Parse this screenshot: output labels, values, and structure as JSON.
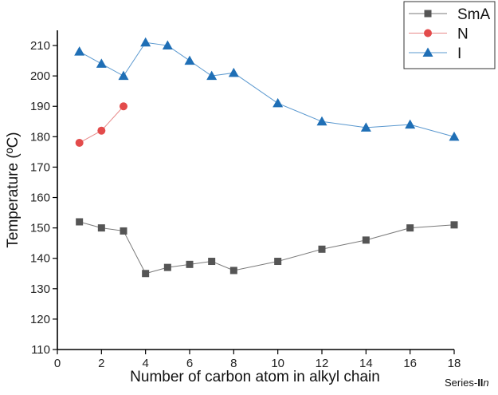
{
  "chart_data": {
    "type": "line",
    "xlabel": "Number of carbon atom in alkyl chain",
    "ylabel": "Temperature (ºC)",
    "xlim": [
      0,
      18
    ],
    "ylim": [
      110,
      215
    ],
    "xticks": [
      0,
      2,
      4,
      6,
      8,
      10,
      12,
      14,
      16,
      18
    ],
    "yticks": [
      110,
      120,
      130,
      140,
      150,
      160,
      170,
      180,
      190,
      200,
      210
    ],
    "grid": false,
    "legend_position": "top-right",
    "annotation": {
      "prefix": "Series-",
      "bold": "II",
      "italic": "n"
    },
    "series": [
      {
        "name": "SmA",
        "marker": "square",
        "color": "#555555",
        "line_color": "#7a7a7a",
        "x": [
          1,
          2,
          3,
          4,
          5,
          6,
          7,
          8,
          10,
          12,
          14,
          16,
          18
        ],
        "y": [
          152,
          150,
          149,
          135,
          137,
          138,
          139,
          136,
          139,
          143,
          146,
          150,
          151
        ]
      },
      {
        "name": "N",
        "marker": "circle",
        "color": "#e34b4b",
        "line_color": "#e88a8a",
        "x": [
          1,
          2,
          3
        ],
        "y": [
          178,
          182,
          190
        ]
      },
      {
        "name": "I",
        "marker": "triangle",
        "color": "#1f6fb6",
        "line_color": "#5a98cf",
        "x": [
          1,
          2,
          3,
          4,
          5,
          6,
          7,
          8,
          10,
          12,
          14,
          16,
          18
        ],
        "y": [
          208,
          204,
          200,
          211,
          210,
          205,
          200,
          201,
          191,
          185,
          183,
          184,
          180
        ]
      }
    ]
  }
}
